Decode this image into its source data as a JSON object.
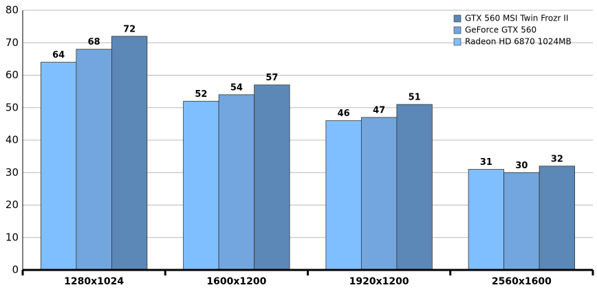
{
  "chart_data": {
    "type": "bar",
    "categories": [
      "1280x1024",
      "1600x1200",
      "1920x1200",
      "2560x1600"
    ],
    "series": [
      {
        "name": "Radeon HD 6870 1024MB",
        "color": "#80bfff",
        "values": [
          64,
          52,
          46,
          31
        ]
      },
      {
        "name": "GeForce GTX 560",
        "color": "#73a6de",
        "values": [
          68,
          54,
          47,
          30
        ]
      },
      {
        "name": "GTX 560 MSI Twin Frozr II",
        "color": "#5b88b6",
        "values": [
          72,
          57,
          51,
          32
        ]
      }
    ],
    "ylim": [
      0,
      80
    ],
    "yticks": [
      0,
      10,
      20,
      30,
      40,
      50,
      60,
      70,
      80
    ],
    "grid": true,
    "legend": "top-right"
  }
}
